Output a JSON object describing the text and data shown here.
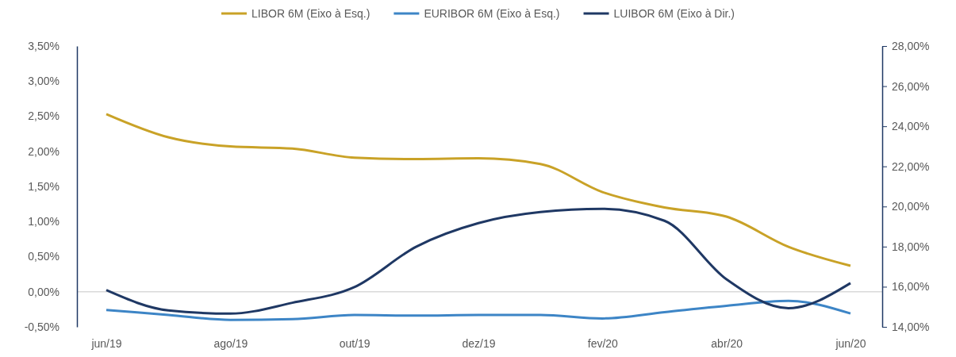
{
  "chart_data": {
    "type": "line",
    "categories": [
      "jun/19",
      null,
      "ago/19",
      null,
      "out/19",
      null,
      "dez/19",
      null,
      "fev/20",
      null,
      "abr/20",
      null,
      "jun/20"
    ],
    "series": [
      {
        "name": "LIBOR 6M (Eixo à Esq.)",
        "color": "#c9a227",
        "values": [
          2.53,
          2.2,
          2.07,
          2.04,
          1.91,
          1.89,
          1.9,
          1.82,
          1.42,
          1.2,
          1.07,
          0.64,
          0.37
        ]
      },
      {
        "name": "EURIBOR 6M (Eixo à Esq.)",
        "color": "#3d85c6",
        "values": [
          -0.26,
          -0.33,
          -0.4,
          -0.39,
          -0.33,
          -0.34,
          -0.33,
          -0.33,
          -0.38,
          -0.29,
          -0.2,
          -0.13,
          -0.31
        ]
      },
      {
        "name": "LUIBOR 6M (Eixo à Dir.)",
        "color": "#1f3864",
        "axis": "y2",
        "values": [
          15.83,
          14.82,
          14.66,
          15.2,
          15.98,
          18.0,
          19.17,
          19.72,
          19.88,
          19.29,
          16.37,
          14.93,
          16.18
        ]
      }
    ],
    "ylim": [
      -0.5,
      3.5
    ],
    "yticks": [
      {
        "value": -0.5,
        "label": "-0,50%"
      },
      {
        "value": 0,
        "label": "0,00%"
      },
      {
        "value": 0.5,
        "label": "0,50%"
      },
      {
        "value": 1,
        "label": "1,00%"
      },
      {
        "value": 1.5,
        "label": "1,50%"
      },
      {
        "value": 2,
        "label": "2,00%"
      },
      {
        "value": 2.5,
        "label": "2,50%"
      },
      {
        "value": 3,
        "label": "3,00%"
      },
      {
        "value": 3.5,
        "label": "3,50%"
      }
    ],
    "y2lim": [
      14,
      28
    ],
    "y2ticks": [
      {
        "value": 14,
        "label": "14,00%"
      },
      {
        "value": 16,
        "label": "16,00%"
      },
      {
        "value": 18,
        "label": "18,00%"
      },
      {
        "value": 20,
        "label": "20,00%"
      },
      {
        "value": 22,
        "label": "22,00%"
      },
      {
        "value": 24,
        "label": "24,00%"
      },
      {
        "value": 26,
        "label": "26,00%"
      },
      {
        "value": 28,
        "label": "28,00%"
      }
    ],
    "ref_lines": [
      {
        "axis": "y",
        "value": 0,
        "color": "#d9d9d9"
      }
    ],
    "legend": "top",
    "grid": false,
    "marker": "none",
    "line_style": "solid"
  }
}
